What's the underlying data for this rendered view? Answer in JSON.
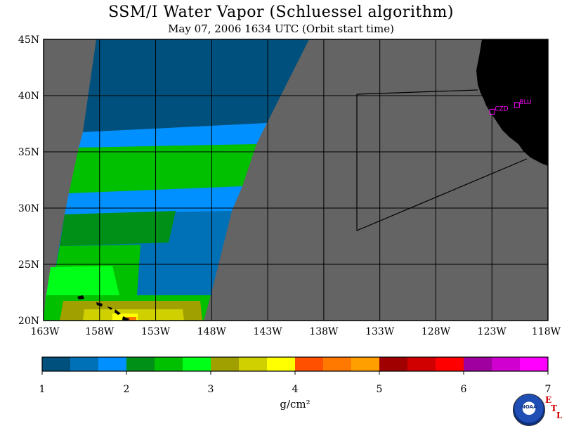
{
  "title": "SSM/I Water Vapor (Schluessel algorithm)",
  "subtitle": "May 07, 2006  1634 UTC  (Orbit start time)",
  "map": {
    "lat_labels": [
      "45N",
      "40N",
      "35N",
      "30N",
      "25N",
      "20N"
    ],
    "lon_labels": [
      "163W",
      "158W",
      "153W",
      "148W",
      "143W",
      "138W",
      "133W",
      "128W",
      "123W",
      "118W"
    ],
    "stations": [
      {
        "name": "CZD",
        "lon": -123.0,
        "lat": 38.6
      },
      {
        "name": "BLU",
        "lon": -120.8,
        "lat": 39.2
      }
    ],
    "colors": {
      "no_data": "#646464",
      "land": "#000000",
      "station": "#ff00ff"
    }
  },
  "colorbar": {
    "tick_labels": [
      "1",
      "2",
      "3",
      "4",
      "5",
      "6",
      "7"
    ],
    "unit": "g/cm²",
    "colors": [
      "#00507d",
      "#0070b7",
      "#0090ff",
      "#009018",
      "#00c000",
      "#00ff18",
      "#a0a000",
      "#d0d000",
      "#ffff00",
      "#ff5000",
      "#ff7800",
      "#ffa000",
      "#a00000",
      "#d00000",
      "#ff0000",
      "#a000a0",
      "#d000d0",
      "#ff00ff"
    ]
  },
  "logo": {
    "text": "NOAA",
    "etl": [
      "E",
      "T",
      "L"
    ]
  }
}
